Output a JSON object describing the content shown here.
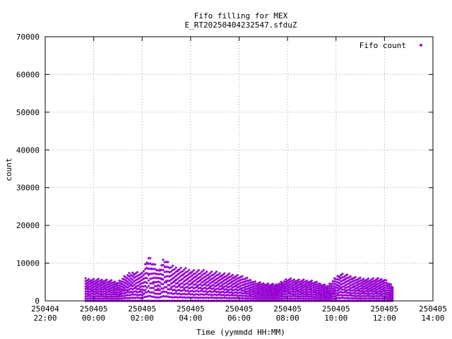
{
  "chart_data": {
    "type": "scatter",
    "title": [
      "Fifo filling for MEX",
      "E_RT20250404232547.sfduZ"
    ],
    "xlabel": "Time (yymmdd HH:MM)",
    "ylabel": "count",
    "xlim": [
      "250404 22:00",
      "250405 14:00"
    ],
    "ylim": [
      0,
      70000
    ],
    "x_ticks": [
      {
        "date": "250404",
        "time": "22:00"
      },
      {
        "date": "250405",
        "time": "00:00"
      },
      {
        "date": "250405",
        "time": "02:00"
      },
      {
        "date": "250405",
        "time": "04:00"
      },
      {
        "date": "250405",
        "time": "06:00"
      },
      {
        "date": "250405",
        "time": "08:00"
      },
      {
        "date": "250405",
        "time": "10:00"
      },
      {
        "date": "250405",
        "time": "12:00"
      },
      {
        "date": "250405",
        "time": "14:00"
      }
    ],
    "y_ticks": [
      "0",
      "10000",
      "20000",
      "30000",
      "40000",
      "50000",
      "60000",
      "70000"
    ],
    "grid": true,
    "legend_position": "top-right",
    "series": [
      {
        "name": "Fifo count",
        "color": "#9400d3",
        "marker": "diamond",
        "x_start": "250404 23:40",
        "x_end": "250405 12:20",
        "envelope_max": [
          [
            "250404 23:40",
            6000
          ],
          [
            "250405 00:30",
            5800
          ],
          [
            "250405 01:00",
            5200
          ],
          [
            "250405 01:20",
            7000
          ],
          [
            "250405 01:40",
            8000
          ],
          [
            "250405 02:00",
            7500
          ],
          [
            "250405 02:15",
            12500
          ],
          [
            "250405 02:40",
            8500
          ],
          [
            "250405 02:55",
            12000
          ],
          [
            "250405 03:10",
            9500
          ],
          [
            "250405 04:00",
            8500
          ],
          [
            "250405 05:00",
            7800
          ],
          [
            "250405 06:00",
            7000
          ],
          [
            "250405 06:45",
            5000
          ],
          [
            "250405 07:30",
            4500
          ],
          [
            "250405 08:00",
            6000
          ],
          [
            "250405 09:00",
            5500
          ],
          [
            "250405 09:40",
            4200
          ],
          [
            "250405 10:10",
            7500
          ],
          [
            "250405 11:00",
            6200
          ],
          [
            "250405 12:00",
            6000
          ],
          [
            "250405 12:20",
            4000
          ]
        ]
      }
    ]
  }
}
